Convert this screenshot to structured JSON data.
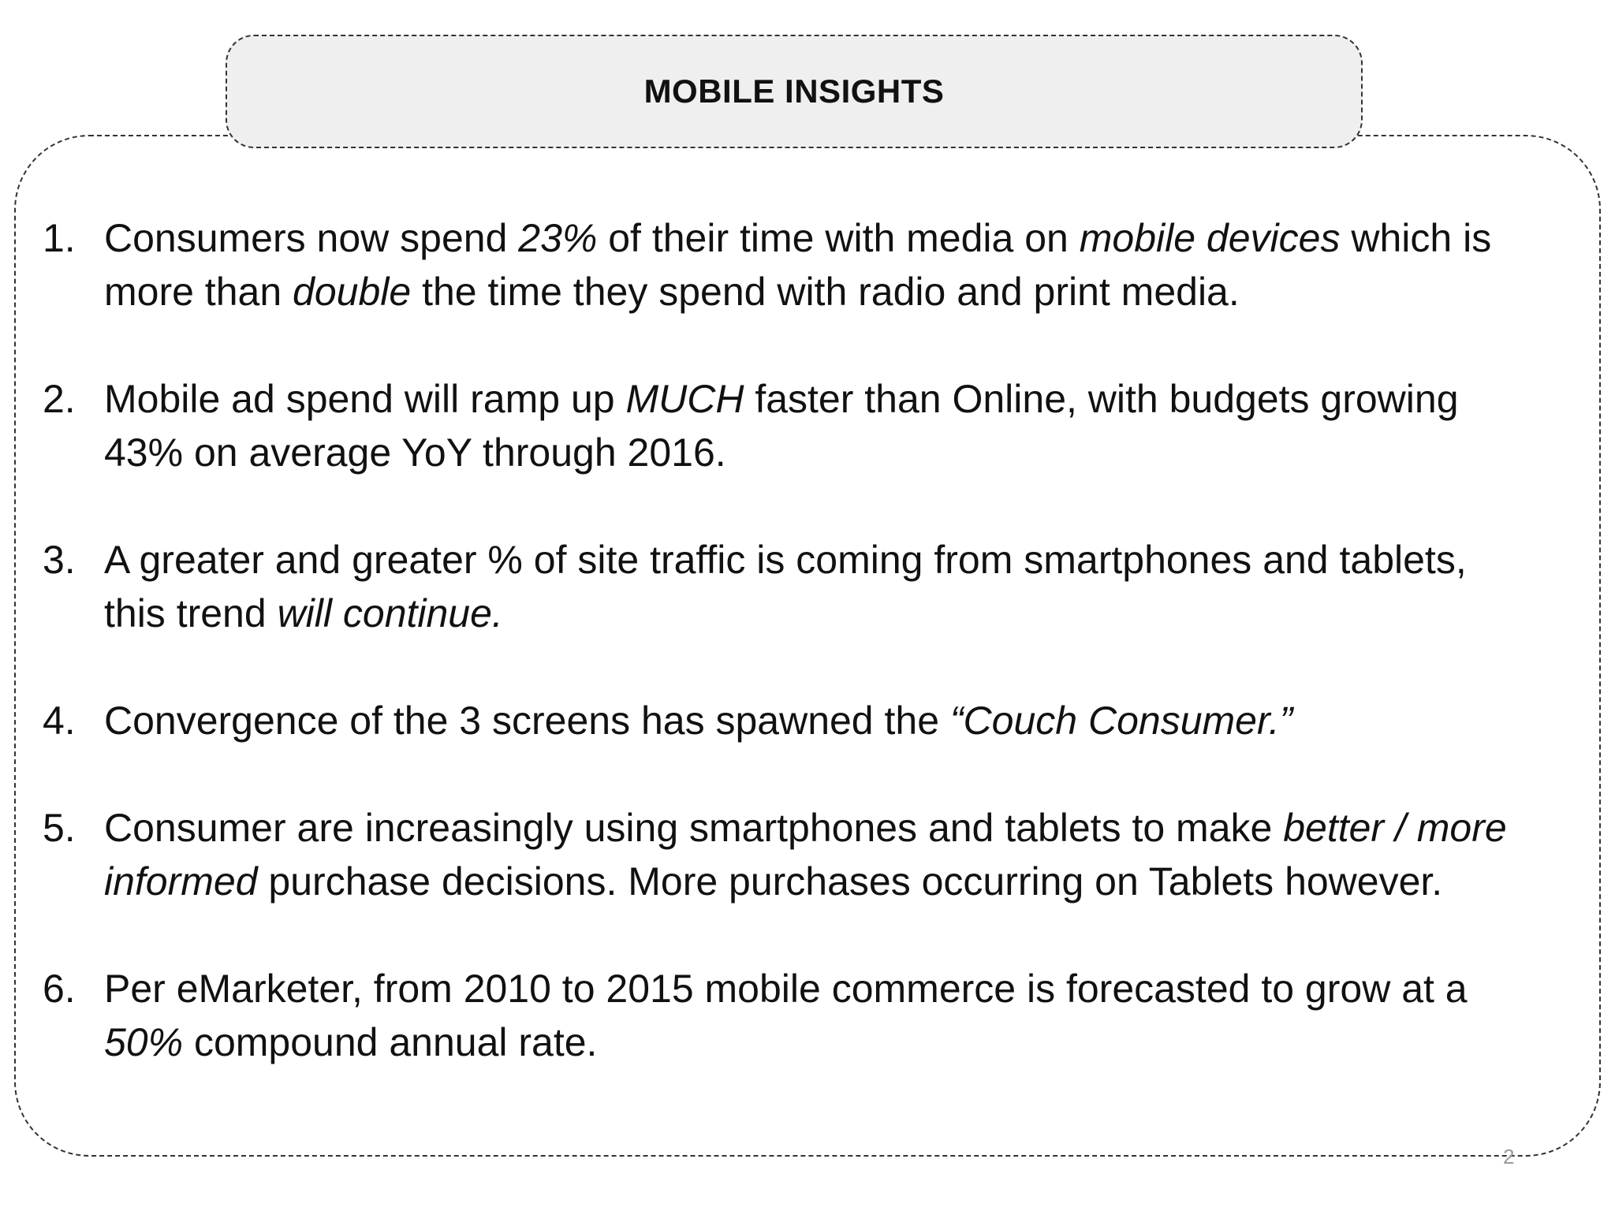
{
  "slide": {
    "title": "MOBILE INSIGHTS",
    "page_number": "2"
  },
  "insights": [
    {
      "number": "1.",
      "segments": [
        {
          "text": "Consumers now spend ",
          "italic": false
        },
        {
          "text": "23%",
          "italic": true
        },
        {
          "text": " of their time with media on ",
          "italic": false
        },
        {
          "text": "mobile devices",
          "italic": true
        },
        {
          "text": " which is more than ",
          "italic": false
        },
        {
          "text": "double",
          "italic": true
        },
        {
          "text": " the time they spend with radio and print media.",
          "italic": false
        }
      ]
    },
    {
      "number": "2.",
      "segments": [
        {
          "text": "Mobile ad spend will ramp up ",
          "italic": false
        },
        {
          "text": "MUCH",
          "italic": true
        },
        {
          "text": " faster than Online, with budgets growing 43% on average YoY through 2016.",
          "italic": false
        }
      ]
    },
    {
      "number": "3.",
      "segments": [
        {
          "text": "A greater and greater % of site traffic is coming from smartphones and tablets, this trend ",
          "italic": false
        },
        {
          "text": "will continue.",
          "italic": true
        }
      ]
    },
    {
      "number": "4.",
      "segments": [
        {
          "text": "Convergence of the 3 screens has spawned the ",
          "italic": false
        },
        {
          "text": "“Couch Consumer.”",
          "italic": true
        }
      ]
    },
    {
      "number": "5.",
      "segments": [
        {
          "text": "Consumer are increasingly using smartphones and tablets to make ",
          "italic": false
        },
        {
          "text": "better / more informed",
          "italic": true
        },
        {
          "text": " purchase decisions. More purchases occurring on Tablets however.",
          "italic": false
        }
      ]
    },
    {
      "number": "6.",
      "segments": [
        {
          "text": "Per eMarketer, from 2010 to 2015 mobile commerce is forecasted to grow at a ",
          "italic": false
        },
        {
          "text": "50%",
          "italic": true
        },
        {
          "text": " compound annual rate.",
          "italic": false
        }
      ]
    }
  ]
}
